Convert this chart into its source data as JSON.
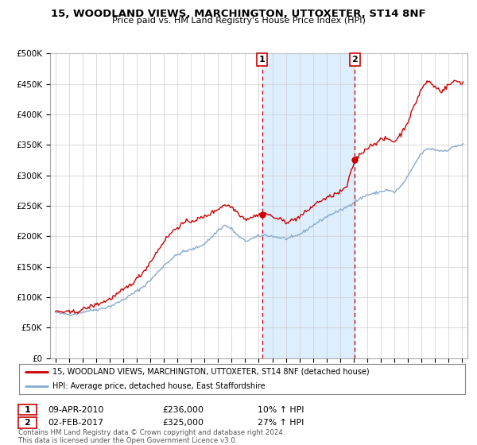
{
  "title1": "15, WOODLAND VIEWS, MARCHINGTON, UTTOXETER, ST14 8NF",
  "title2": "Price paid vs. HM Land Registry's House Price Index (HPI)",
  "ylabel_ticks": [
    "£0",
    "£50K",
    "£100K",
    "£150K",
    "£200K",
    "£250K",
    "£300K",
    "£350K",
    "£400K",
    "£450K",
    "£500K"
  ],
  "ytick_vals": [
    0,
    50000,
    100000,
    150000,
    200000,
    250000,
    300000,
    350000,
    400000,
    450000,
    500000
  ],
  "ylim": [
    0,
    500000
  ],
  "xlim_start": 1994.6,
  "xlim_end": 2025.4,
  "red_line_color": "#cc0000",
  "blue_line_color": "#88aacc",
  "shade_color": "#ddeeff",
  "marker1_date": 2010.25,
  "marker1_value": 236000,
  "marker1_label": "1",
  "marker2_date": 2017.08,
  "marker2_value": 325000,
  "marker2_label": "2",
  "legend_red": "15, WOODLAND VIEWS, MARCHINGTON, UTTOXETER, ST14 8NF (detached house)",
  "legend_blue": "HPI: Average price, detached house, East Staffordshire",
  "note1_label": "1",
  "note1_date": "09-APR-2010",
  "note1_price": "£236,000",
  "note1_hpi": "10% ↑ HPI",
  "note2_label": "2",
  "note2_date": "02-FEB-2017",
  "note2_price": "£325,000",
  "note2_hpi": "27% ↑ HPI",
  "footer": "Contains HM Land Registry data © Crown copyright and database right 2024.\nThis data is licensed under the Open Government Licence v3.0.",
  "bg_color": "#ffffff",
  "plot_bg_color": "#ffffff",
  "grid_color": "#cccccc",
  "xtick_years": [
    1995,
    1996,
    1997,
    1998,
    1999,
    2000,
    2001,
    2002,
    2003,
    2004,
    2005,
    2006,
    2007,
    2008,
    2009,
    2010,
    2011,
    2012,
    2013,
    2014,
    2015,
    2016,
    2017,
    2018,
    2019,
    2020,
    2021,
    2022,
    2023,
    2024,
    2025
  ]
}
